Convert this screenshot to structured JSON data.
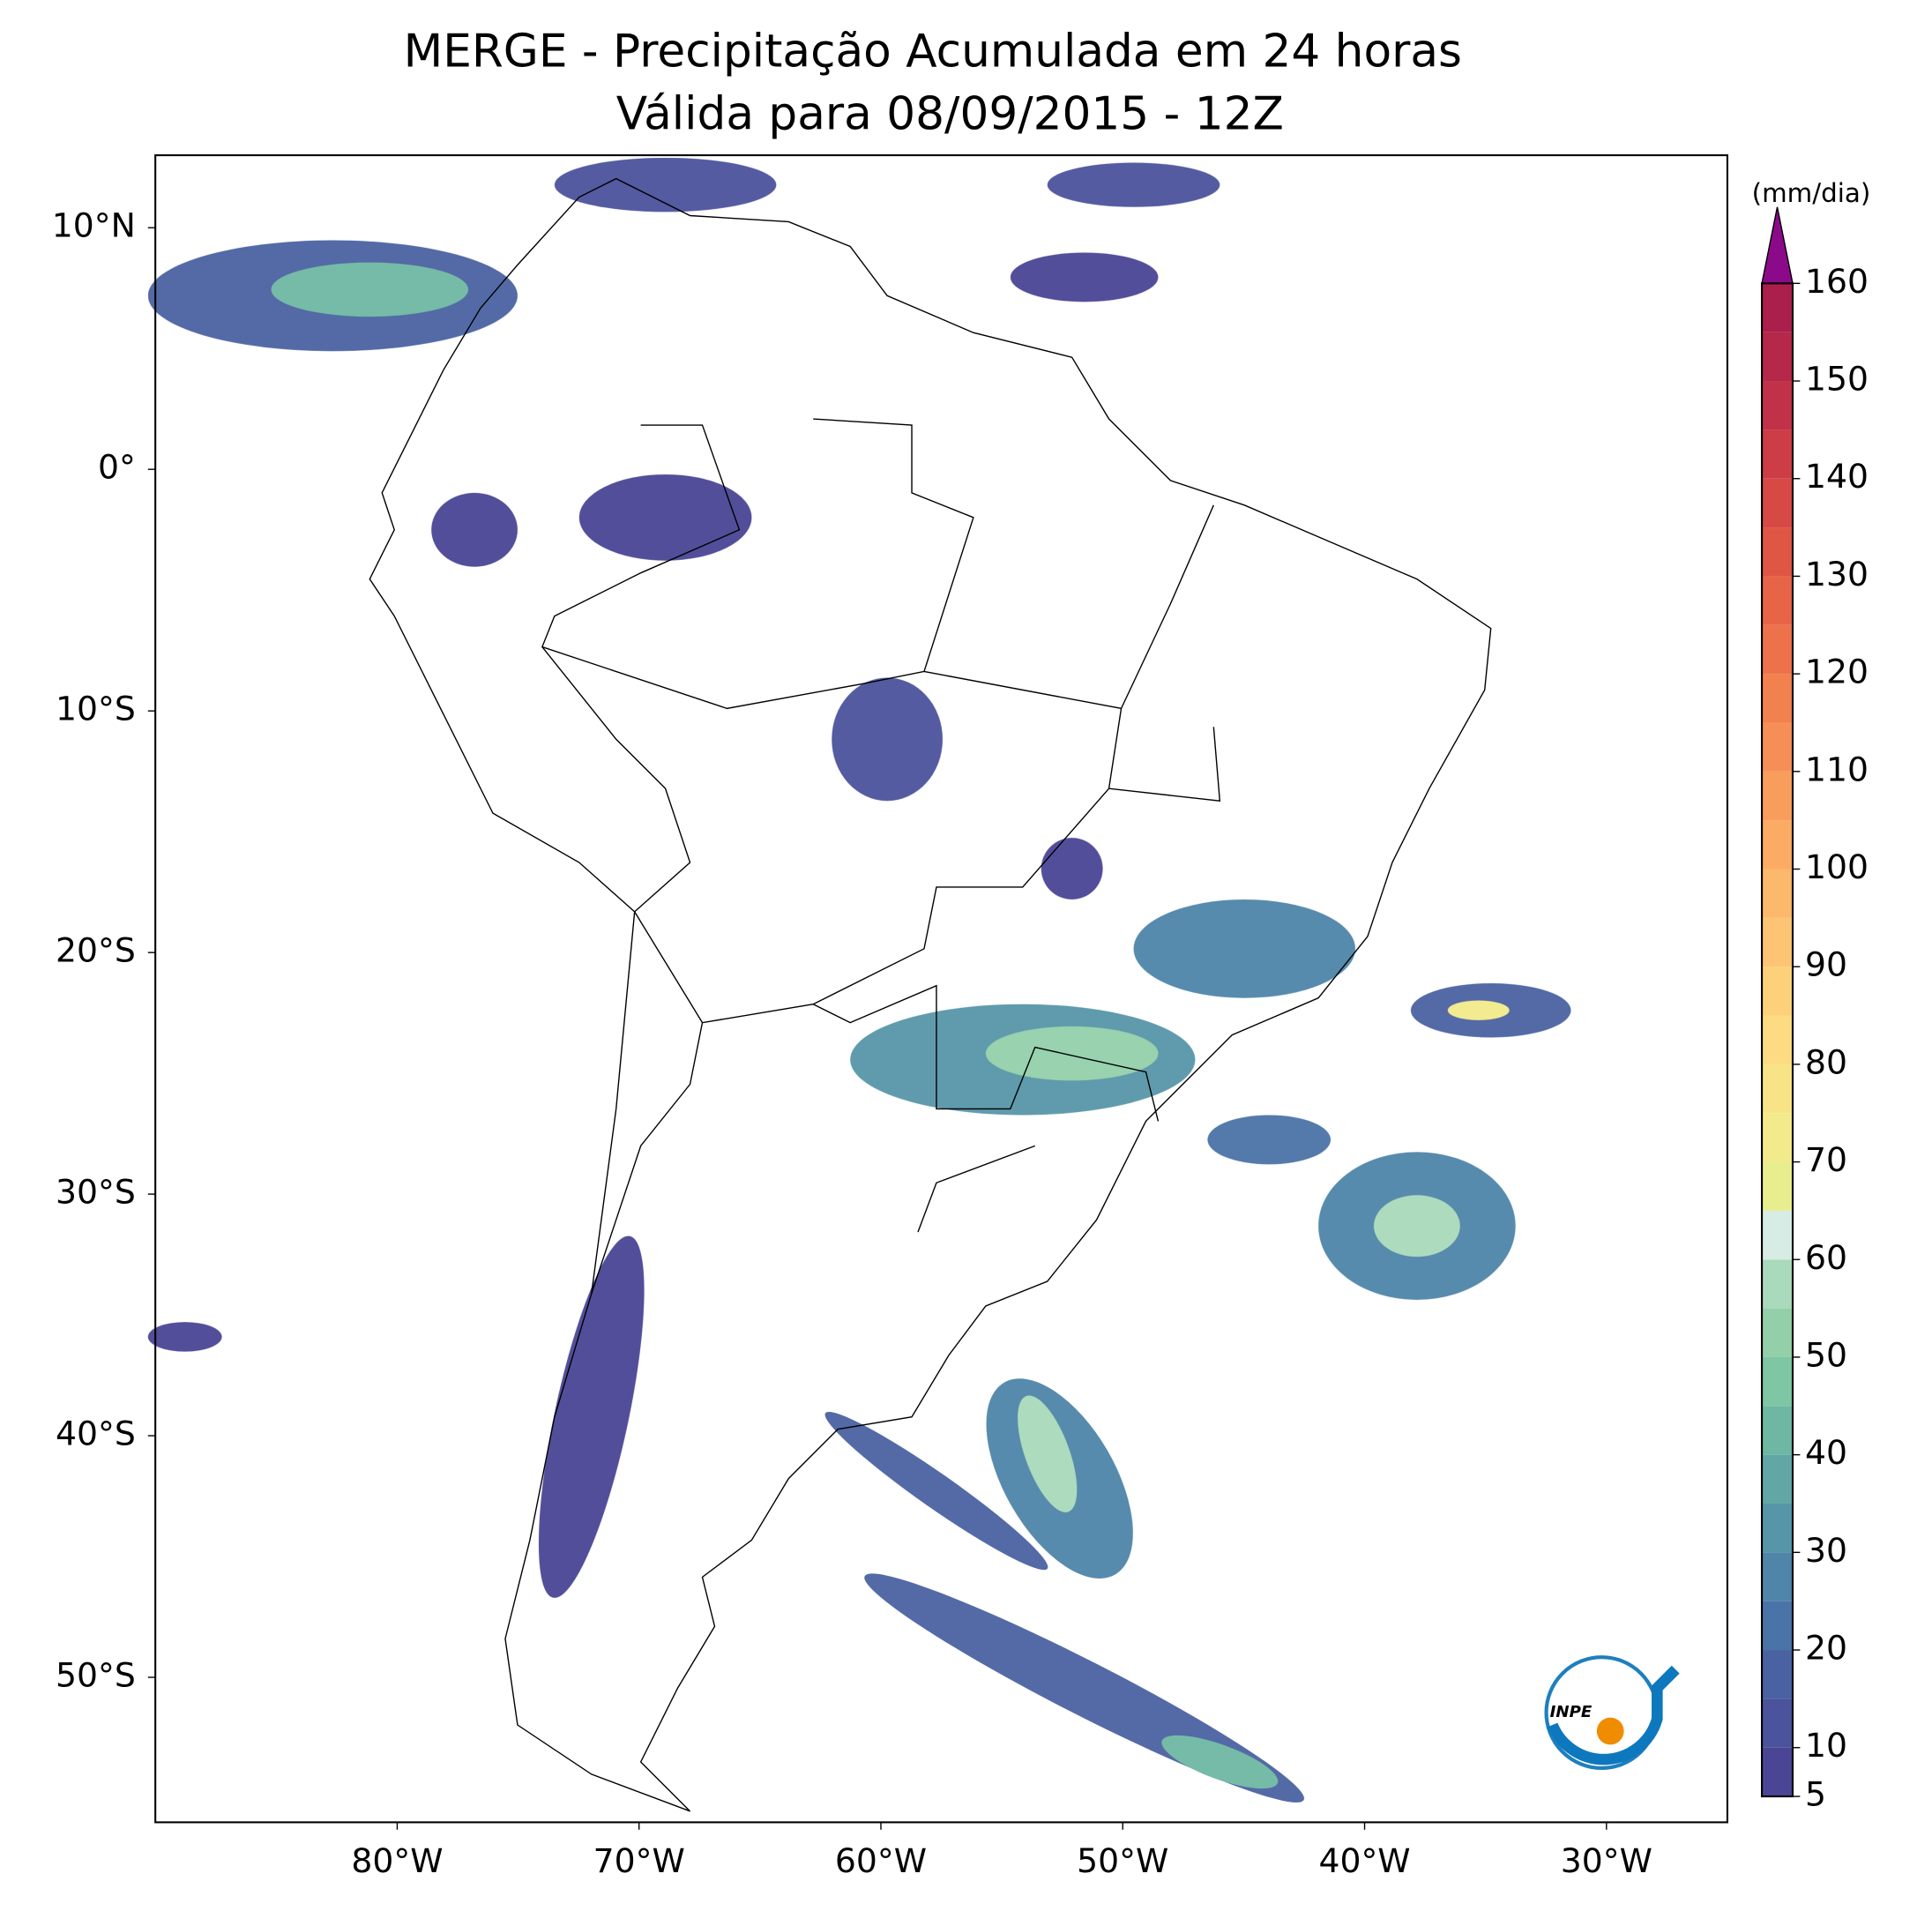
{
  "chart_data": {
    "type": "map",
    "title": "MERGE - Precipitação Acumulada em 24 horas",
    "subtitle": "Válida para 08/09/2015 - 12Z",
    "xlim": [
      -90,
      -25
    ],
    "ylim": [
      -56,
      13
    ],
    "xticks": [
      {
        "value": -80,
        "label": "80°W"
      },
      {
        "value": -70,
        "label": "70°W"
      },
      {
        "value": -60,
        "label": "60°W"
      },
      {
        "value": -50,
        "label": "50°W"
      },
      {
        "value": -40,
        "label": "40°W"
      },
      {
        "value": -30,
        "label": "30°W"
      }
    ],
    "yticks": [
      {
        "value": 10,
        "label": "10°N"
      },
      {
        "value": 0,
        "label": "0°"
      },
      {
        "value": -10,
        "label": "10°S"
      },
      {
        "value": -20,
        "label": "20°S"
      },
      {
        "value": -30,
        "label": "30°S"
      },
      {
        "value": -40,
        "label": "40°S"
      },
      {
        "value": -50,
        "label": "50°S"
      }
    ],
    "colorbar": {
      "label": "(mm/dia)",
      "levels": [
        5,
        10,
        15,
        20,
        25,
        30,
        35,
        40,
        45,
        50,
        55,
        60,
        65,
        70,
        75,
        80,
        85,
        90,
        95,
        100,
        105,
        110,
        115,
        120,
        125,
        130,
        135,
        140,
        145,
        150,
        155,
        160
      ],
      "colors": [
        "#4a4595",
        "#4b539c",
        "#4a62a2",
        "#4a73a7",
        "#4f85a9",
        "#5796a8",
        "#62a7a6",
        "#6eb8a3",
        "#7ec6a4",
        "#93d0aa",
        "#a9dabb",
        "#d8ece6",
        "#e8ee8e",
        "#f2ea8b",
        "#f8e487",
        "#fcdb82",
        "#fdd07a",
        "#fdc473",
        "#fcb86b",
        "#fbab64",
        "#f99d5d",
        "#f68f57",
        "#f28150",
        "#ed724b",
        "#e76447",
        "#df5645",
        "#d64945",
        "#cc3d46",
        "#c13248",
        "#b6284a",
        "#ab1f4c"
      ],
      "extend_color": "#8b0a8a",
      "ticks": [
        5,
        10,
        20,
        30,
        40,
        50,
        60,
        70,
        80,
        90,
        100,
        110,
        120,
        130,
        140,
        150,
        160
      ]
    },
    "logo": "INPE"
  }
}
